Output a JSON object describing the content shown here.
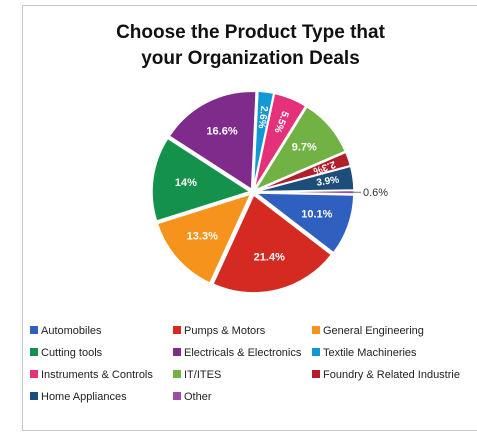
{
  "title_line1": "Choose the Product Type that",
  "title_line2": "your Organization Deals",
  "chart_data": {
    "type": "pie",
    "title": "Choose the Product Type that your Organization Deals",
    "legend_position": "bottom",
    "slices": [
      {
        "name": "Home Appliances",
        "value": 3.9,
        "label": "3.9%",
        "color": "#1d4e7a"
      },
      {
        "name": "Other",
        "value": 0.6,
        "label": "0.6%",
        "color": "#9b4fa6"
      },
      {
        "name": "Automobiles",
        "value": 10.1,
        "label": "10.1%",
        "color": "#2f5fbf"
      },
      {
        "name": "Pumps & Motors",
        "value": 21.4,
        "label": "21.4%",
        "color": "#d42a22"
      },
      {
        "name": "General Engineering",
        "value": 13.3,
        "label": "13.3%",
        "color": "#f6931d"
      },
      {
        "name": "Cutting tools",
        "value": 14,
        "label": "14%",
        "color": "#14914a"
      },
      {
        "name": "Electricals & Electronics",
        "value": 16.6,
        "label": "16.6%",
        "color": "#7e2b8c"
      },
      {
        "name": "Textile Machineries",
        "value": 2.6,
        "label": "2.6%",
        "color": "#1298d4"
      },
      {
        "name": "Instruments & Controls",
        "value": 5.5,
        "label": "5.5%",
        "color": "#e5317a"
      },
      {
        "name": "IT/ITES",
        "value": 9.7,
        "label": "9.7%",
        "color": "#72b244"
      },
      {
        "name": "Foundry & Related Industries",
        "value": 2.3,
        "label": "2.3%",
        "color": "#b21e2a"
      }
    ],
    "legend": [
      {
        "label": "Automobiles",
        "color": "#2f5fbf"
      },
      {
        "label": "Pumps & Motors",
        "color": "#d42a22"
      },
      {
        "label": "General Engineering",
        "color": "#f6931d"
      },
      {
        "label": "Cutting tools",
        "color": "#14914a"
      },
      {
        "label": "Electricals & Electronics",
        "color": "#7e2b8c"
      },
      {
        "label": "Textile Machineries",
        "color": "#1298d4"
      },
      {
        "label": "Instruments & Controls",
        "color": "#e5317a"
      },
      {
        "label": "IT/ITES",
        "color": "#72b244"
      },
      {
        "label": "Foundry & Related Industrie",
        "color": "#b21e2a"
      },
      {
        "label": "Home Appliances",
        "color": "#1d4e7a"
      },
      {
        "label": "Other",
        "color": "#9b4fa6"
      }
    ]
  }
}
